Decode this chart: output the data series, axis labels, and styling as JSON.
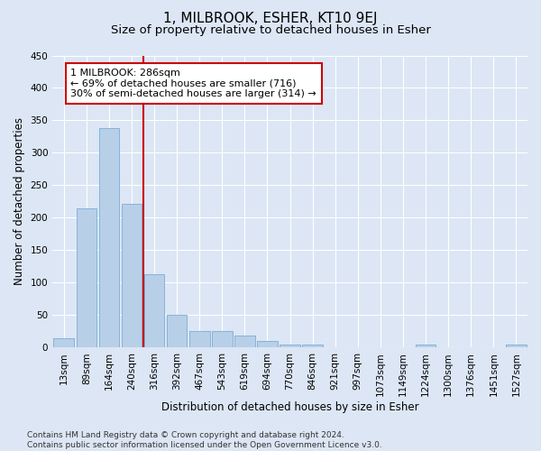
{
  "title": "1, MILBROOK, ESHER, KT10 9EJ",
  "subtitle": "Size of property relative to detached houses in Esher",
  "xlabel": "Distribution of detached houses by size in Esher",
  "ylabel": "Number of detached properties",
  "bar_labels": [
    "13sqm",
    "89sqm",
    "164sqm",
    "240sqm",
    "316sqm",
    "392sqm",
    "467sqm",
    "543sqm",
    "619sqm",
    "694sqm",
    "770sqm",
    "846sqm",
    "921sqm",
    "997sqm",
    "1073sqm",
    "1149sqm",
    "1224sqm",
    "1300sqm",
    "1376sqm",
    "1451sqm",
    "1527sqm"
  ],
  "bar_values": [
    15,
    215,
    338,
    222,
    113,
    50,
    26,
    26,
    18,
    10,
    5,
    4,
    0,
    0,
    0,
    0,
    4,
    0,
    0,
    0,
    4
  ],
  "bar_color": "#b8cfe8",
  "bar_edge_color": "#7aadd4",
  "vline_index": 4,
  "vline_color": "#cc0000",
  "annotation_text": "1 MILBROOK: 286sqm\n← 69% of detached houses are smaller (716)\n30% of semi-detached houses are larger (314) →",
  "annotation_box_color": "#ffffff",
  "annotation_box_edge": "#cc0000",
  "ylim": [
    0,
    450
  ],
  "yticks": [
    0,
    50,
    100,
    150,
    200,
    250,
    300,
    350,
    400,
    450
  ],
  "background_color": "#dce6f5",
  "plot_bg_color": "#dce6f5",
  "footer": "Contains HM Land Registry data © Crown copyright and database right 2024.\nContains public sector information licensed under the Open Government Licence v3.0.",
  "title_fontsize": 11,
  "subtitle_fontsize": 9.5,
  "axis_label_fontsize": 8.5,
  "tick_fontsize": 7.5,
  "annotation_fontsize": 8,
  "footer_fontsize": 6.5
}
